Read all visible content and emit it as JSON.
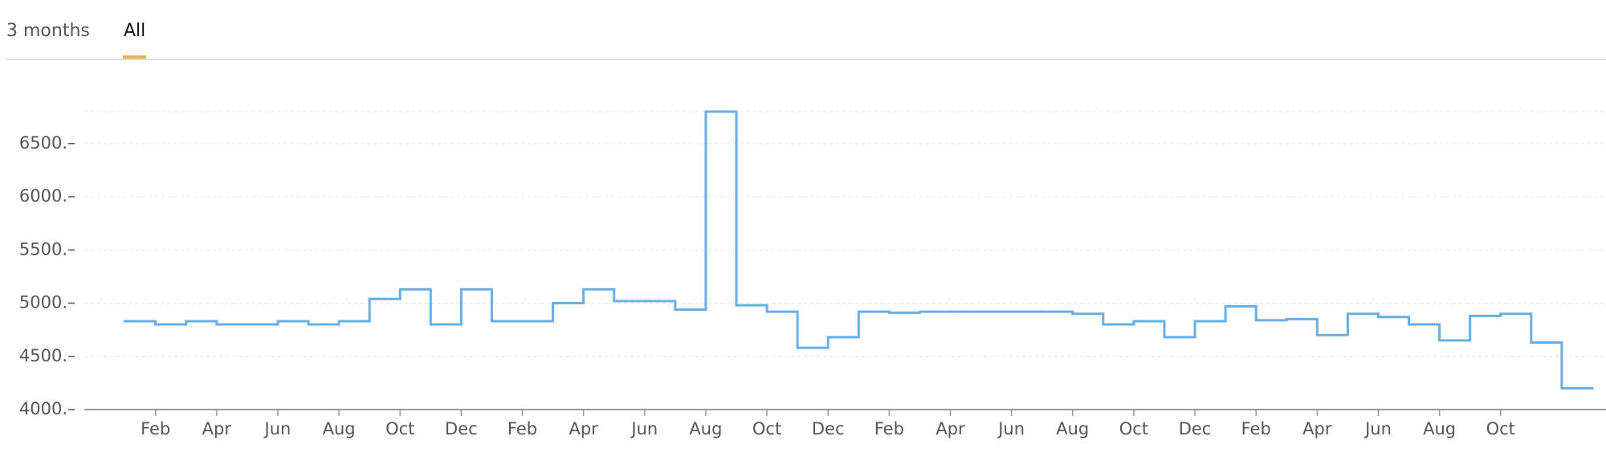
{
  "tabs": [
    {
      "label": "3 months",
      "active": false
    },
    {
      "label": "All",
      "active": true
    }
  ],
  "chart_data": {
    "type": "step-line",
    "categories": [
      null,
      "Feb",
      null,
      "Apr",
      null,
      "Jun",
      null,
      "Aug",
      null,
      "Oct",
      null,
      "Dec",
      null,
      "Feb",
      null,
      "Apr",
      null,
      "Jun",
      null,
      "Aug",
      null,
      "Oct",
      null,
      "Dec",
      null,
      "Feb",
      null,
      "Apr",
      null,
      "Jun",
      null,
      "Aug",
      null,
      "Oct",
      null,
      "Dec",
      null,
      "Feb",
      null,
      "Apr",
      null,
      "Jun",
      null,
      "Aug",
      null,
      "Oct",
      null,
      null
    ],
    "series": [
      {
        "color": "#6aaee6",
        "values": [
          4830,
          4800,
          4830,
          4800,
          4800,
          4830,
          4800,
          4830,
          5040,
          5130,
          4800,
          5130,
          4830,
          4830,
          5000,
          5130,
          5020,
          5020,
          4940,
          6800,
          4980,
          4920,
          4580,
          4680,
          4920,
          4910,
          4920,
          4920,
          4920,
          4920,
          4920,
          4900,
          4800,
          4830,
          4680,
          4830,
          4970,
          4840,
          4850,
          4700,
          4900,
          4870,
          4800,
          4650,
          4880,
          4900,
          4630,
          4200
        ]
      }
    ],
    "ylim": [
      4000,
      6800
    ],
    "yticks": [
      {
        "value": 4000,
        "label": "4000."
      },
      {
        "value": 4500,
        "label": "4500."
      },
      {
        "value": 5000,
        "label": "5000."
      },
      {
        "value": 5500,
        "label": "5500."
      },
      {
        "value": 6000,
        "label": "6000."
      },
      {
        "value": 6500,
        "label": "6500."
      }
    ],
    "grid": true
  }
}
